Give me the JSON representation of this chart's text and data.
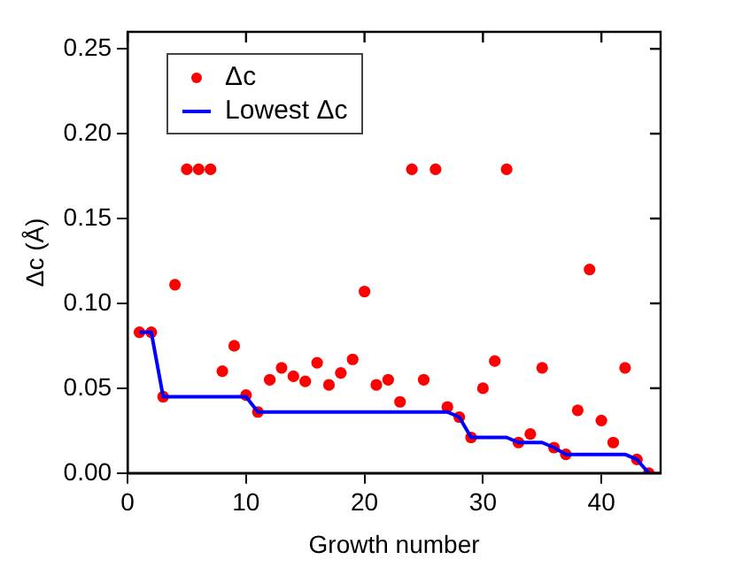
{
  "chart_data": {
    "type": "scatter",
    "xlabel": "Growth number",
    "ylabel": "Δc (Å)",
    "x": [
      1,
      2,
      3,
      4,
      5,
      6,
      7,
      8,
      9,
      10,
      11,
      12,
      13,
      14,
      15,
      16,
      17,
      18,
      19,
      20,
      21,
      22,
      23,
      24,
      25,
      26,
      27,
      28,
      29,
      30,
      31,
      32,
      33,
      34,
      35,
      36,
      37,
      38,
      39,
      40,
      41,
      42,
      43,
      44
    ],
    "series": [
      {
        "name": "Δc",
        "color": "#ff0000",
        "marker": "circle",
        "values": [
          0.083,
          0.083,
          0.045,
          0.111,
          0.179,
          0.179,
          0.179,
          0.06,
          0.075,
          0.046,
          0.036,
          0.055,
          0.062,
          0.057,
          0.054,
          0.065,
          0.052,
          0.059,
          0.067,
          0.107,
          0.052,
          0.055,
          0.042,
          0.179,
          0.055,
          0.179,
          0.039,
          0.033,
          0.021,
          0.05,
          0.066,
          0.179,
          0.018,
          0.023,
          0.062,
          0.015,
          0.011,
          0.037,
          0.12,
          0.031,
          0.018,
          0.062,
          0.008,
          0.0
        ]
      },
      {
        "name": "Lowest Δc",
        "type": "line",
        "color": "#0000ff",
        "marker": "none",
        "line_style": "solid",
        "values": [
          0.083,
          0.083,
          0.045,
          0.045,
          0.045,
          0.045,
          0.045,
          0.045,
          0.045,
          0.045,
          0.036,
          0.036,
          0.036,
          0.036,
          0.036,
          0.036,
          0.036,
          0.036,
          0.036,
          0.036,
          0.036,
          0.036,
          0.036,
          0.036,
          0.036,
          0.036,
          0.036,
          0.033,
          0.021,
          0.021,
          0.021,
          0.021,
          0.018,
          0.018,
          0.018,
          0.015,
          0.011,
          0.011,
          0.011,
          0.011,
          0.011,
          0.011,
          0.008,
          0.0
        ]
      }
    ],
    "xlim": [
      0,
      45
    ],
    "xticks": [
      0,
      10,
      20,
      30,
      40
    ],
    "ylim": [
      0,
      0.26
    ],
    "yticks": [
      {
        "value": 0,
        "label": "0.00"
      },
      0.05,
      {
        "value": 0.1,
        "label": "0.10"
      },
      0.15,
      {
        "value": 0.2,
        "label": "0.20"
      },
      0.25
    ],
    "grid": false,
    "legend": "top left"
  }
}
